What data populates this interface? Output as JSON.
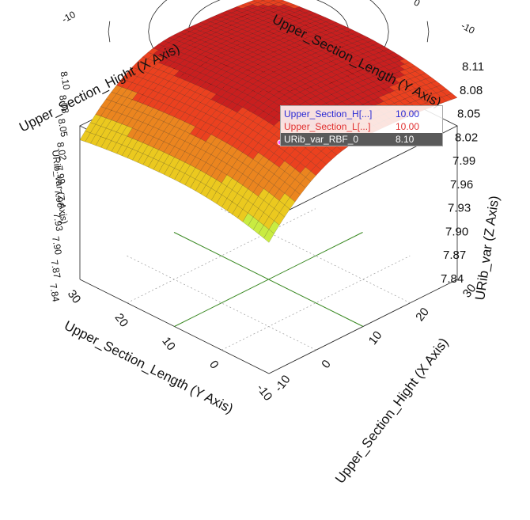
{
  "chart_data": {
    "type": "surface3d",
    "axes": {
      "x": {
        "title": "Upper_Section_Hight (X Axis)",
        "range": [
          -10,
          30
        ],
        "ticks": [
          "-10",
          "0",
          "10",
          "20",
          "30"
        ]
      },
      "y": {
        "title": "Upper_Section_Length (Y Axis)",
        "range": [
          -10,
          30
        ],
        "ticks": [
          "-10",
          "0",
          "10",
          "20",
          "30"
        ]
      },
      "z": {
        "title": "URib_var (Z Axis)",
        "range": [
          7.82,
          8.11
        ],
        "ticks": [
          "7.84",
          "7.87",
          "7.90",
          "7.93",
          "7.96",
          "7.99",
          "8.02",
          "8.05",
          "8.08",
          "8.11"
        ],
        "ticks_left": [
          "7.84",
          "7.87",
          "7.90",
          "7.93",
          "7.96",
          "7.99",
          "8.02",
          "8.05",
          "8.08",
          "8.10"
        ]
      }
    },
    "surface": {
      "peak": {
        "x": 10,
        "y": 10,
        "z": 8.1
      },
      "corner_values": {
        "x_-10_y_-10": 7.82,
        "x_30_y_-10": 8.07,
        "x_-10_y_30": 7.99,
        "x_30_y_30": 8.09
      },
      "colormap": "jet"
    },
    "cursor": [
      {
        "label": "Upper_Section_H[...]",
        "value": "10.00",
        "color": "#2a2ad4"
      },
      {
        "label": "Upper_Section_L[...]",
        "value": "10.00",
        "color": "#e03030"
      },
      {
        "label": "URib_var_RBF_0",
        "value": "8.10",
        "color": "#ffffff"
      }
    ]
  }
}
